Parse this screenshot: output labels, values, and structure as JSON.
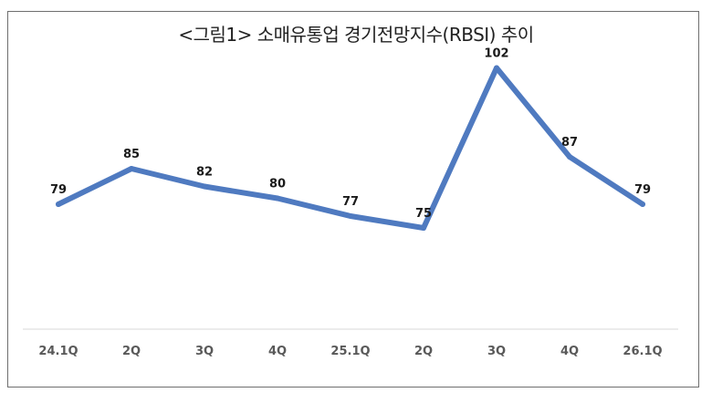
{
  "chart_data": {
    "type": "line",
    "title": "<그림1> 소매유통업 경기전망지수(RBSI) 추이",
    "categories": [
      "24.1Q",
      "2Q",
      "3Q",
      "4Q",
      "25.1Q",
      "2Q",
      "3Q",
      "4Q",
      "26.1Q"
    ],
    "series": [
      {
        "values": [
          79,
          85,
          82,
          80,
          77,
          75,
          102,
          87,
          79
        ],
        "color": "#4f7ac0"
      }
    ],
    "data_label_color": "#1a1a1a",
    "highlight_label_color": "#c00000",
    "highlight_index": 8,
    "xlabel": "",
    "ylabel": "",
    "ylim": [
      40,
      120
    ],
    "grid": false,
    "legend": "none"
  }
}
